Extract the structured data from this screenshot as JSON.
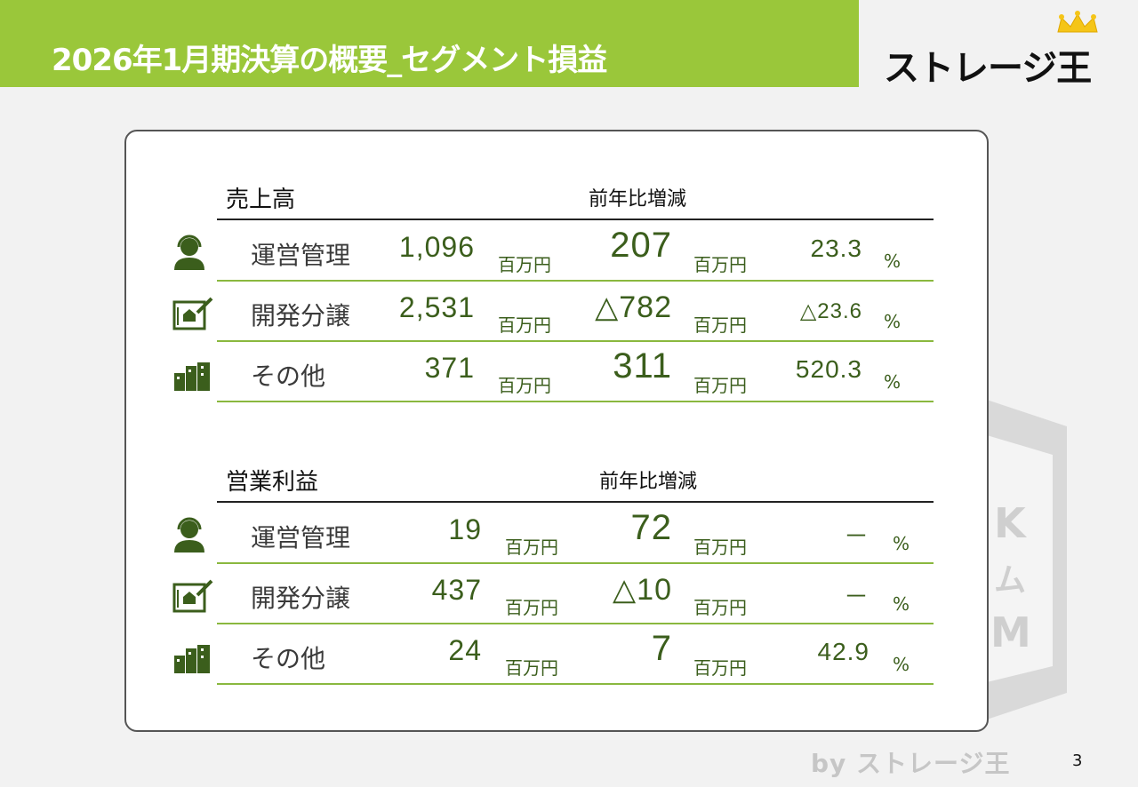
{
  "header": {
    "title": "2026年1月期決算の概要_セグメント損益",
    "logo_text": "ストレージ王",
    "accent_color": "#9ac73a"
  },
  "sales": {
    "heading": "売上高",
    "diff_heading": "前年比増減",
    "rows": [
      {
        "icon": "operator-headset-icon",
        "name": "運営管理",
        "value": "1,096",
        "unit": "百万円",
        "diff": "207",
        "diff_unit": "百万円",
        "pct": "23.3",
        "pct_unit": "%"
      },
      {
        "icon": "development-plan-icon",
        "name": "開発分譲",
        "value": "2,531",
        "unit": "百万円",
        "diff": "△782",
        "diff_unit": "百万円",
        "pct": "△23.6",
        "pct_unit": "%"
      },
      {
        "icon": "buildings-icon",
        "name": "その他",
        "value": "371",
        "unit": "百万円",
        "diff": "311",
        "diff_unit": "百万円",
        "pct": "520.3",
        "pct_unit": "%"
      }
    ]
  },
  "profit": {
    "heading": "営業利益",
    "diff_heading": "前年比増減",
    "rows": [
      {
        "icon": "operator-headset-icon",
        "name": "運営管理",
        "value": "19",
        "unit": "百万円",
        "diff": "72",
        "diff_unit": "百万円",
        "pct": "－",
        "pct_unit": "%"
      },
      {
        "icon": "development-plan-icon",
        "name": "開発分譲",
        "value": "437",
        "unit": "百万円",
        "diff": "△10",
        "diff_unit": "百万円",
        "pct": "－",
        "pct_unit": "%"
      },
      {
        "icon": "buildings-icon",
        "name": "その他",
        "value": "24",
        "unit": "百万円",
        "diff": "7",
        "diff_unit": "百万円",
        "pct": "42.9",
        "pct_unit": "%"
      }
    ]
  },
  "footer": {
    "by_text": "by ストレージ王",
    "page_number": "3"
  }
}
